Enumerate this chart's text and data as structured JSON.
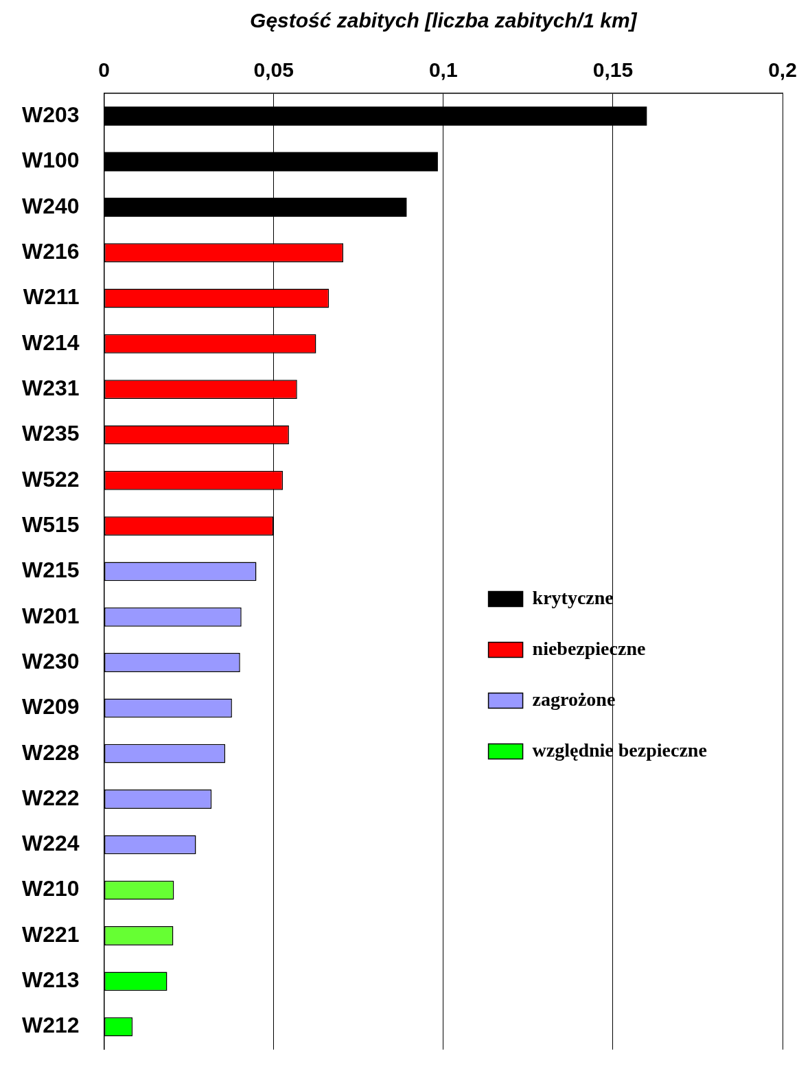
{
  "chart_data": {
    "type": "bar",
    "orientation": "horizontal",
    "stacked": true,
    "xlabel": "Gęstość zabitych [liczba zabitych/1 km]",
    "categories": [
      "W203",
      "W100",
      "W240",
      "W216",
      "W211",
      "W214",
      "W231",
      "W235",
      "W522",
      "W515",
      "W215",
      "W201",
      "W230",
      "W209",
      "W228",
      "W222",
      "W224",
      "W210",
      "W221",
      "W213",
      "W212"
    ],
    "series": [
      {
        "name": "krytyczne",
        "color": "#000000",
        "values": [
          0.16,
          0.0984,
          0.0892,
          null,
          null,
          null,
          null,
          null,
          null,
          null,
          null,
          null,
          null,
          null,
          null,
          null,
          null,
          null,
          null,
          null,
          null
        ]
      },
      {
        "name": "niebezpieczne",
        "color": "#ff0000",
        "values": [
          null,
          null,
          null,
          0.0705,
          0.0663,
          0.0625,
          0.0569,
          0.0545,
          0.0527,
          0.0499,
          null,
          null,
          null,
          null,
          null,
          null,
          null,
          null,
          null,
          null,
          null
        ]
      },
      {
        "name": "zagrożone",
        "color": "#9999ff",
        "values": [
          null,
          null,
          null,
          null,
          null,
          null,
          null,
          null,
          null,
          null,
          0.0449,
          0.0405,
          0.0401,
          0.0377,
          0.0357,
          0.0317,
          0.0271,
          null,
          null,
          null,
          null
        ]
      },
      {
        "name": "względnie bezpieczne",
        "color": "#00ff00",
        "colors": [
          "#66ff33",
          "#66ff33",
          "#66ff33",
          "#66ff33",
          "#66ff33",
          "#66ff33",
          "#66ff33",
          "#66ff33",
          "#66ff33",
          "#66ff33",
          "#66ff33",
          "#66ff33",
          "#66ff33",
          "#66ff33",
          "#66ff33",
          "#66ff33",
          "#66ff33",
          "#66ff33",
          "#66ff33",
          "#00ff00",
          "#00ff00"
        ],
        "values": [
          null,
          null,
          null,
          null,
          null,
          null,
          null,
          null,
          null,
          null,
          null,
          null,
          null,
          null,
          null,
          null,
          null,
          0.0206,
          0.0204,
          0.0186,
          0.0084
        ]
      }
    ],
    "xlim": [
      0,
      0.2
    ],
    "xticks": [
      {
        "value": 0,
        "label": "0"
      },
      {
        "value": 0.05,
        "label": "0,05"
      },
      {
        "value": 0.1,
        "label": "0,1"
      },
      {
        "value": 0.15,
        "label": "0,15"
      },
      {
        "value": 0.2,
        "label": "0,2"
      }
    ],
    "grid": "x",
    "legend": "right"
  }
}
